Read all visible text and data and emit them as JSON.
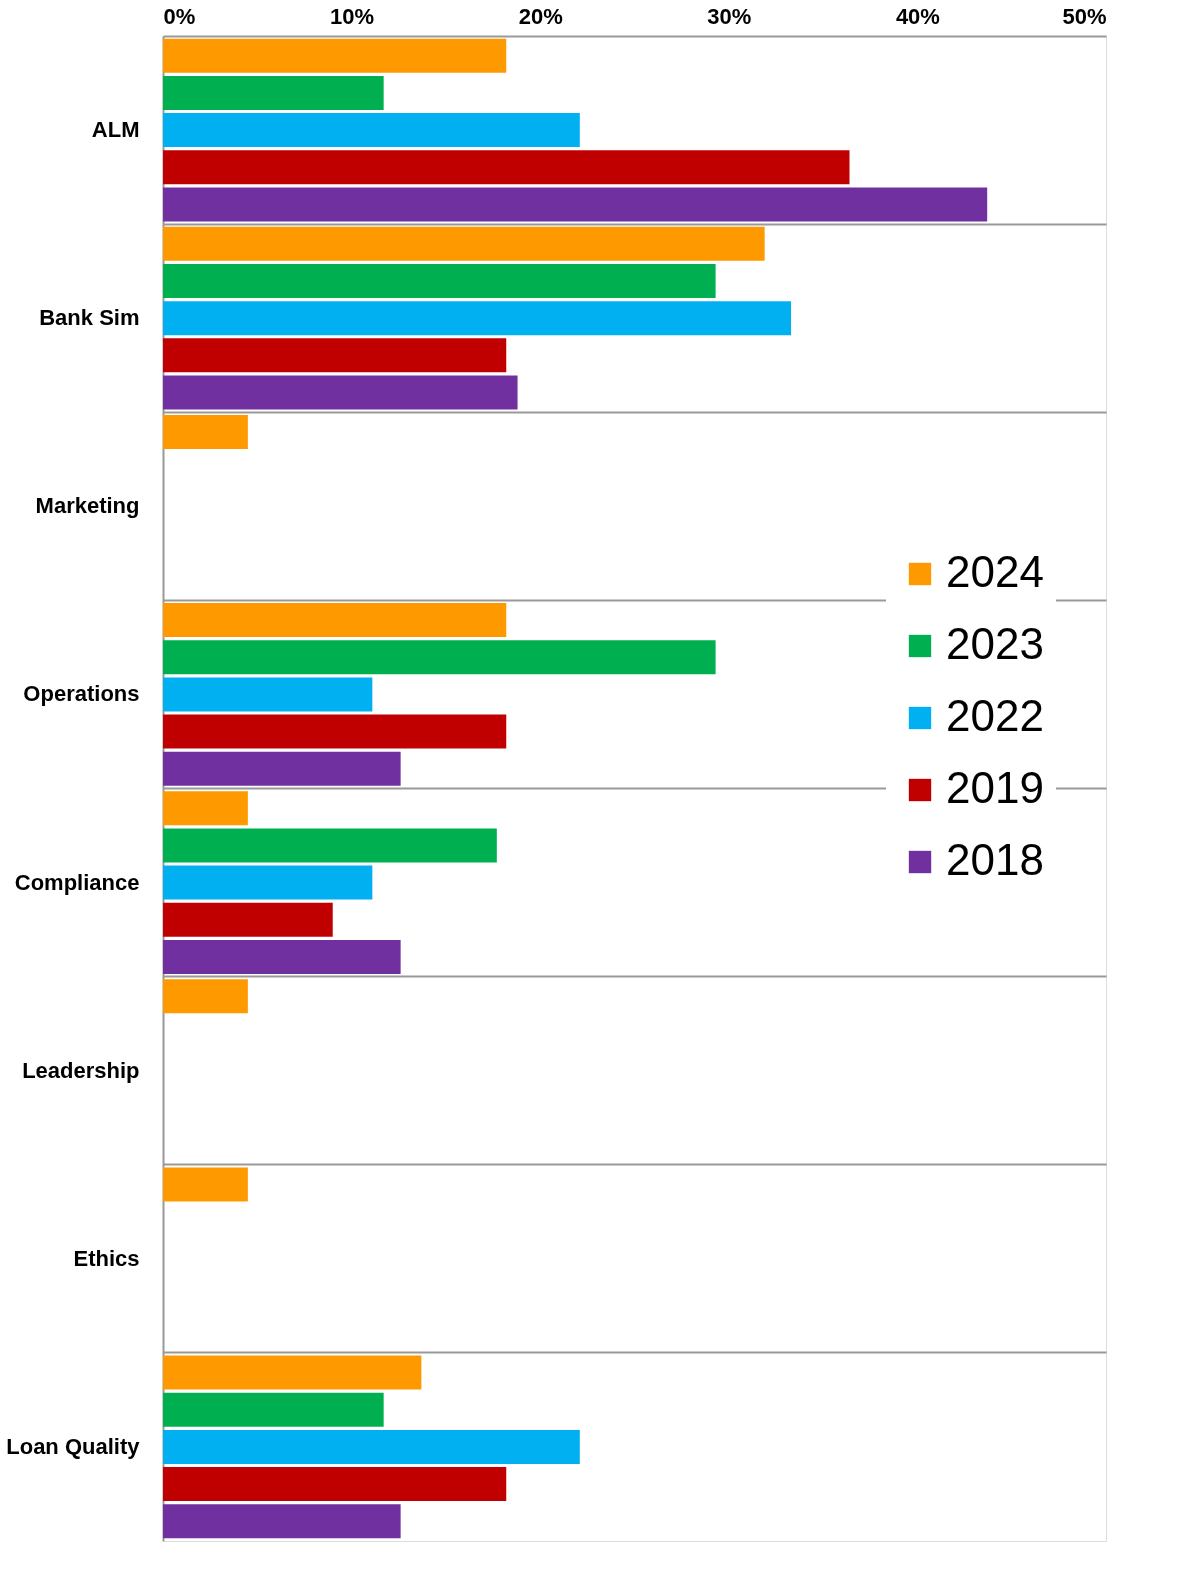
{
  "chart_data": {
    "type": "bar",
    "orientation": "horizontal",
    "categories": [
      "ALM",
      "Bank Sim",
      "Marketing",
      "Operations",
      "Compliance",
      "Leadership",
      "Ethics",
      "Loan Quality"
    ],
    "series": [
      {
        "name": "2024",
        "color": "#ff9900",
        "values": [
          18.2,
          31.9,
          4.5,
          18.2,
          4.5,
          4.5,
          4.5,
          13.7
        ]
      },
      {
        "name": "2023",
        "color": "#00b050",
        "values": [
          11.7,
          29.3,
          null,
          29.3,
          17.7,
          null,
          null,
          11.7
        ]
      },
      {
        "name": "2022",
        "color": "#00b0f0",
        "values": [
          22.1,
          33.3,
          null,
          11.1,
          11.1,
          null,
          null,
          22.1
        ]
      },
      {
        "name": "2019",
        "color": "#c00000",
        "values": [
          36.4,
          18.2,
          null,
          18.2,
          9.0,
          null,
          null,
          18.2
        ]
      },
      {
        "name": "2018",
        "color": "#7030a0",
        "values": [
          43.7,
          18.8,
          null,
          12.6,
          12.6,
          null,
          null,
          12.6
        ]
      }
    ],
    "xlim": [
      0,
      50
    ],
    "xticks": [
      {
        "value": 0,
        "label": "0%"
      },
      {
        "value": 10,
        "label": "10%"
      },
      {
        "value": 20,
        "label": "20%"
      },
      {
        "value": 30,
        "label": "30%"
      },
      {
        "value": 40,
        "label": "40%"
      },
      {
        "value": 50,
        "label": "50%"
      }
    ],
    "grid": "y",
    "legend": "right"
  }
}
